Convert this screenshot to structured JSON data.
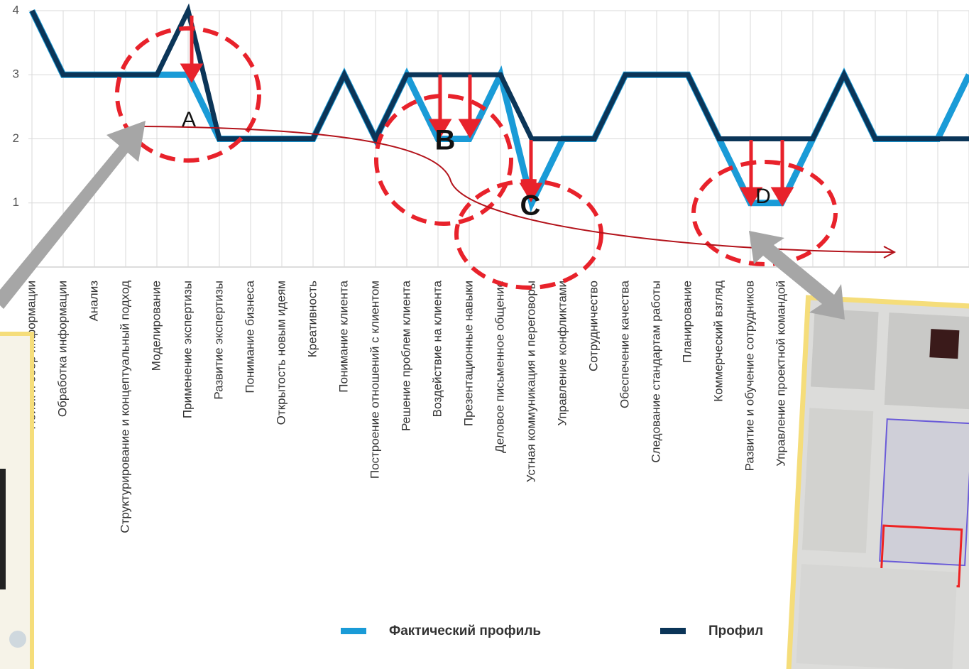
{
  "chart_data": {
    "type": "line",
    "categories": [
      "Поиск и сбор информации",
      "Обработка информации",
      "Анализ",
      "Структурирование и концептуальный подход",
      "Моделирование",
      "Применение экспертизы",
      "Развитие экспертизы",
      "Понимание бизнеса",
      "Открытость новым идеям",
      "Креативность",
      "Понимание клиента",
      "Построение отношений с клиентом",
      "Решение проблем клиента",
      "Воздействие на клиента",
      "Презентационные навыки",
      "Деловое письменное общение",
      "Устная коммуникация и переговоры",
      "Управление конфликтами",
      "Сотрудничество",
      "Обеспечение качества",
      "Следование стандартам работы",
      "Планирование",
      "Коммерческий взгляд",
      "Развитие и обучение сотрудников",
      "Управление проектной командой",
      null,
      null,
      null,
      null,
      null,
      null
    ],
    "series": [
      {
        "name": "Фактический профиль",
        "color": "#1a9bd7",
        "values": [
          4,
          3,
          3,
          3,
          3,
          3,
          2,
          2,
          2,
          2,
          3,
          2,
          3,
          2,
          2,
          3,
          1,
          2,
          2,
          3,
          3,
          3,
          2,
          1,
          1,
          2,
          3,
          2,
          2,
          2,
          3
        ]
      },
      {
        "name": "Профил",
        "color": "#0b3558",
        "values": [
          4,
          3,
          3,
          3,
          3,
          4,
          2,
          2,
          2,
          2,
          3,
          2,
          3,
          3,
          3,
          3,
          2,
          2,
          2,
          3,
          3,
          3,
          2,
          2,
          2,
          2,
          3,
          2,
          2,
          2,
          2
        ]
      }
    ],
    "ylim": [
      0,
      4
    ],
    "yticks": [
      1,
      2,
      3,
      4
    ],
    "grid": true,
    "annotations": [
      "A",
      "B",
      "C",
      "D"
    ]
  }
}
